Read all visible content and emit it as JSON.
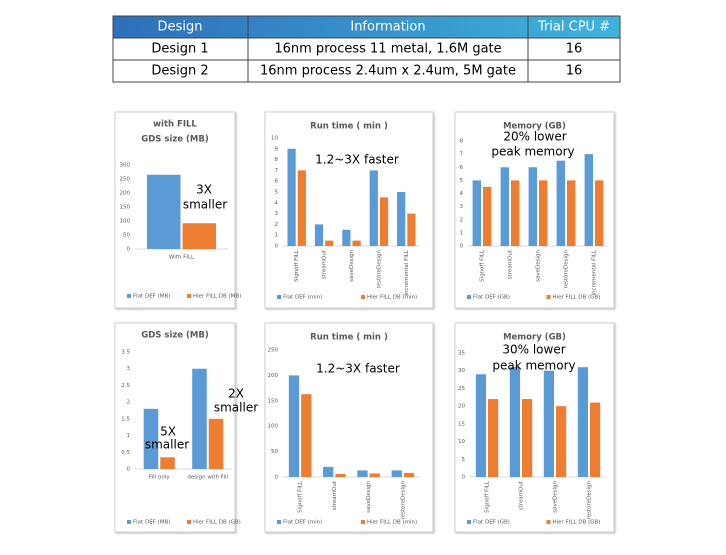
{
  "table": {
    "header": [
      "Design",
      "Information",
      "Trial CPU #"
    ],
    "rows": [
      [
        "Design 1",
        "16nm process 11 metal, 1.6M gate",
        "16"
      ],
      [
        "Design 2",
        "16nm process 2.4um x 2.4um, 5M gate",
        "16"
      ]
    ]
  },
  "chart_data": [
    {
      "type": "bar",
      "title": "with FILL",
      "subtitle": "GDS size (MB)",
      "categories": [
        "With FILL"
      ],
      "series": [
        {
          "name": "Flat DEF (MB)",
          "color": "#5b9bd5",
          "values": [
            265
          ]
        },
        {
          "name": "Hier FILL DB (MB)",
          "color": "#ed7d31",
          "values": [
            92
          ]
        }
      ],
      "ylim": [
        0,
        300
      ],
      "yticks": [
        0,
        50,
        100,
        150,
        200,
        250,
        300
      ],
      "annotations": [
        [
          "3X",
          "smaller"
        ]
      ]
    },
    {
      "type": "bar",
      "title": "Run time ( min )",
      "categories": [
        "Signoff FILL",
        "streamOut",
        "saveDesign",
        "restoreDesign",
        "Incremental FILL"
      ],
      "series": [
        {
          "name": "Flat DEF (min)",
          "color": "#5b9bd5",
          "values": [
            9,
            2,
            1.5,
            7,
            5
          ]
        },
        {
          "name": "Hier FILL DB (min)",
          "color": "#ed7d31",
          "values": [
            7,
            0.5,
            0.5,
            4.5,
            3
          ]
        }
      ],
      "ylim": [
        0,
        10
      ],
      "yticks": [
        0,
        1,
        2,
        3,
        4,
        5,
        6,
        7,
        8,
        9,
        10
      ],
      "annotations": [
        [
          "1.2~3X faster"
        ]
      ]
    },
    {
      "type": "bar",
      "title": "Memory (GB)",
      "categories": [
        "Signoff FILL",
        "streamOut",
        "saveDesign",
        "restoreDesign",
        "Incremental FILL"
      ],
      "series": [
        {
          "name": "Flat DEF (GB)",
          "color": "#5b9bd5",
          "values": [
            5,
            6,
            6,
            6.5,
            7
          ]
        },
        {
          "name": "Hier FILL DB  (GB)",
          "color": "#ed7d31",
          "values": [
            4.5,
            5,
            5,
            5,
            5
          ]
        }
      ],
      "ylim": [
        0,
        8
      ],
      "yticks": [
        0,
        1,
        2,
        3,
        4,
        5,
        6,
        7,
        8
      ],
      "annotations": [
        [
          "20% lower",
          "peak memory"
        ]
      ]
    },
    {
      "type": "bar",
      "title": "GDS size (MB)",
      "categories": [
        "Fill only",
        "design with Fill"
      ],
      "series": [
        {
          "name": "Flat DEF (MB)",
          "color": "#5b9bd5",
          "values": [
            1.8,
            3
          ]
        },
        {
          "name": "Hier FILL DB (GB)",
          "color": "#ed7d31",
          "values": [
            0.35,
            1.5
          ]
        }
      ],
      "ylim": [
        0,
        3.5
      ],
      "yticks": [
        0,
        0.5,
        1,
        1.5,
        2,
        2.5,
        3,
        3.5
      ],
      "annotations": [
        [
          "5X",
          "smaller"
        ],
        [
          "2X",
          "smaller"
        ]
      ]
    },
    {
      "type": "bar",
      "title": "Run time ( min )",
      "categories": [
        "Signoff FILL",
        "streamOut",
        "saveDesign",
        "restoreDesign"
      ],
      "series": [
        {
          "name": "Flat DEF (min)",
          "color": "#5b9bd5",
          "values": [
            200,
            20,
            13,
            13
          ]
        },
        {
          "name": "Hier FILL DB (min)",
          "color": "#ed7d31",
          "values": [
            163,
            6,
            7,
            8
          ]
        }
      ],
      "ylim": [
        0,
        250
      ],
      "yticks": [
        0,
        50,
        100,
        150,
        200,
        250
      ],
      "annotations": [
        [
          "1.2~3X faster"
        ]
      ]
    },
    {
      "type": "bar",
      "title": "Memory (GB)",
      "categories": [
        "Signoff FILL",
        "streamOut",
        "saveDesign",
        "restoreDesign"
      ],
      "series": [
        {
          "name": "Flat DEF (GB)",
          "color": "#5b9bd5",
          "values": [
            29,
            31,
            30,
            31
          ]
        },
        {
          "name": "Hier FILL DB  (GB)",
          "color": "#ed7d31",
          "values": [
            22,
            22,
            20,
            21
          ]
        }
      ],
      "ylim": [
        0,
        35
      ],
      "yticks": [
        0,
        5,
        10,
        15,
        20,
        25,
        30,
        35
      ],
      "annotations": [
        [
          "30% lower",
          "peak memory"
        ]
      ]
    }
  ]
}
